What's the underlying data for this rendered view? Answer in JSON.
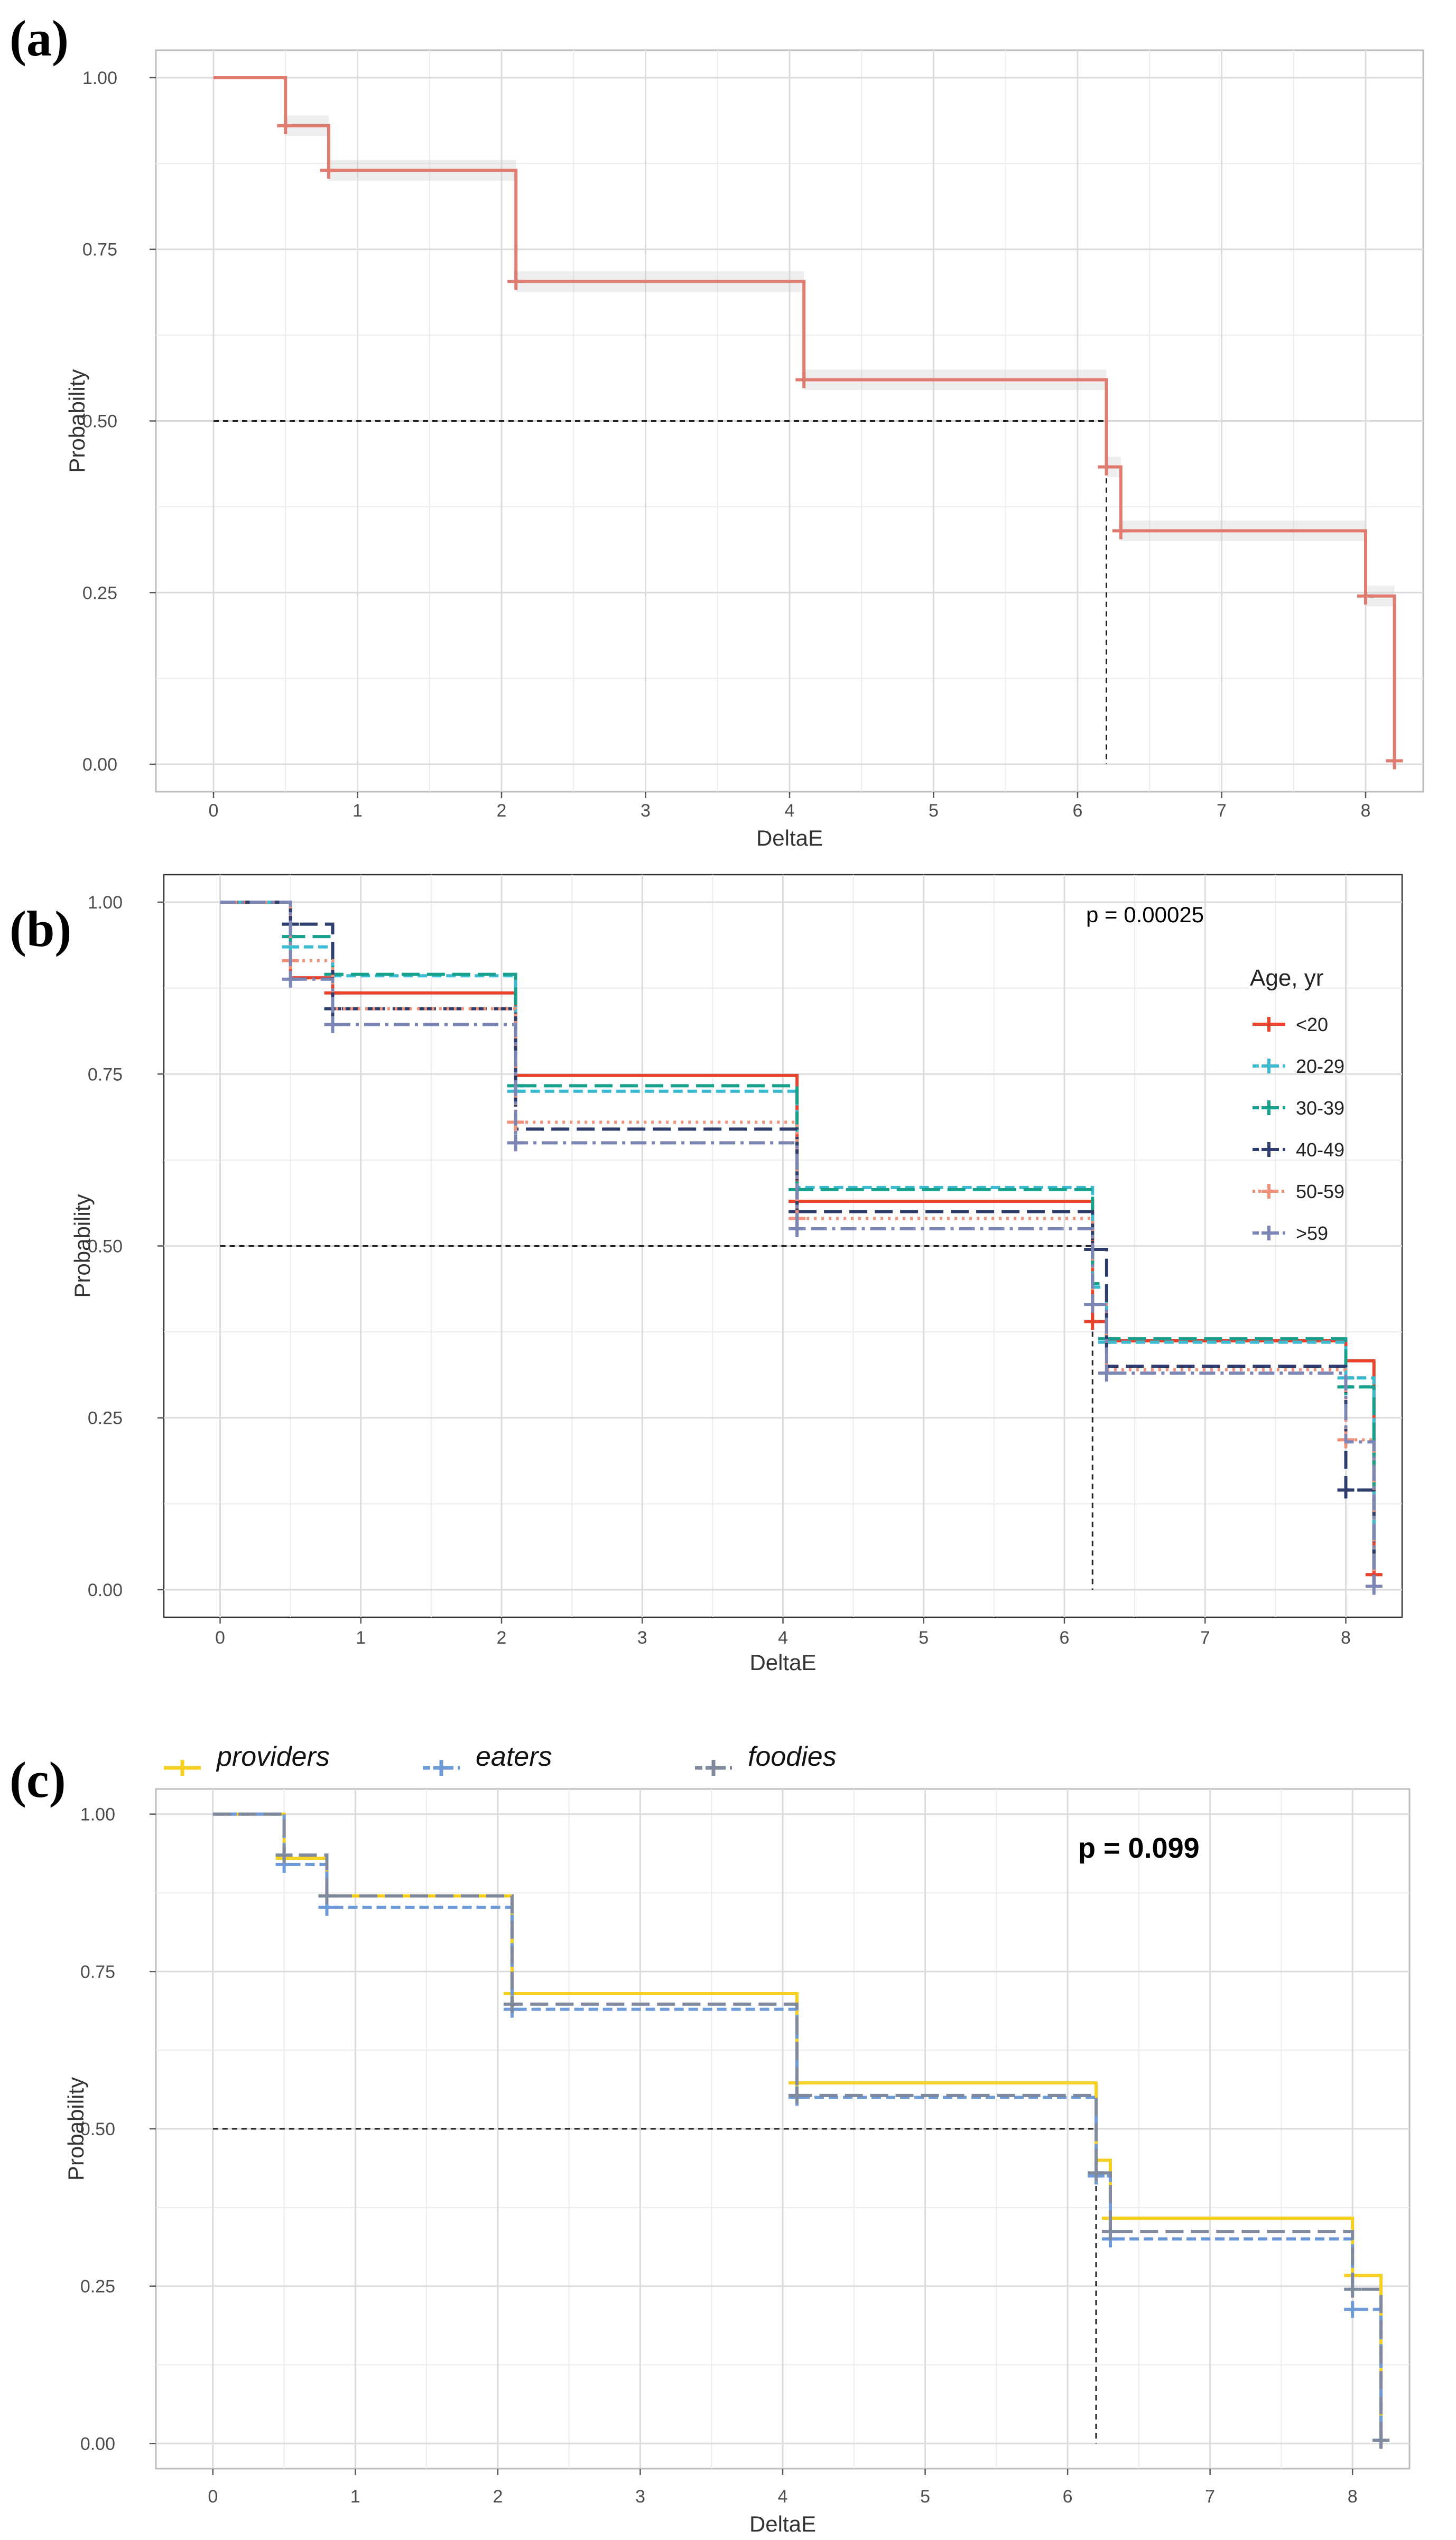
{
  "chart_data": [
    {
      "panel": "(a)",
      "type": "line",
      "xlabel": "DeltaE",
      "ylabel": "Probability",
      "xlim": [
        -0.4,
        8.4
      ],
      "ylim": [
        -0.04,
        1.04
      ],
      "xticks": [
        "0",
        "1",
        "2",
        "3",
        "4",
        "5",
        "6",
        "7",
        "8"
      ],
      "yticks": [
        "0.00",
        "0.25",
        "0.50",
        "0.75",
        "1.00"
      ],
      "grid": true,
      "background": "gray-border",
      "median_line": {
        "y": 0.5,
        "x": 6.2
      },
      "series": [
        {
          "color": "#E07B70",
          "dash": "solid",
          "steps": [
            [
              0,
              1.0
            ],
            [
              0.5,
              0.93
            ],
            [
              0.8,
              0.865
            ],
            [
              2.1,
              0.703
            ],
            [
              4.1,
              0.56
            ],
            [
              6.2,
              0.433
            ],
            [
              6.3,
              0.34
            ],
            [
              8.0,
              0.245
            ],
            [
              8.2,
              0.005
            ]
          ],
          "censor": [
            [
              0.5,
              0.93
            ],
            [
              0.8,
              0.865
            ],
            [
              2.1,
              0.703
            ],
            [
              4.1,
              0.56
            ],
            [
              6.2,
              0.433
            ],
            [
              6.3,
              0.34
            ],
            [
              8.0,
              0.245
            ],
            [
              8.2,
              0.005
            ]
          ]
        }
      ]
    },
    {
      "panel": "(b)",
      "type": "line",
      "xlabel": "DeltaE",
      "ylabel": "Probability",
      "xlim": [
        -0.4,
        8.4
      ],
      "ylim": [
        -0.04,
        1.04
      ],
      "xticks": [
        "0",
        "1",
        "2",
        "3",
        "4",
        "5",
        "6",
        "7",
        "8"
      ],
      "yticks": [
        "0.00",
        "0.25",
        "0.50",
        "0.75",
        "1.00"
      ],
      "grid": true,
      "annotation": "p = 0.00025",
      "median_line": {
        "y": 0.5,
        "x": 6.2
      },
      "legend": {
        "title": "Age, yr",
        "placement": "right"
      },
      "series": [
        {
          "name": "<20",
          "color": "#E8432C",
          "dash": "solid",
          "steps": [
            [
              0,
              1.0
            ],
            [
              0.5,
              0.89
            ],
            [
              0.8,
              0.868
            ],
            [
              2.1,
              0.748
            ],
            [
              4.1,
              0.565
            ],
            [
              6.2,
              0.39
            ],
            [
              6.3,
              0.362
            ],
            [
              8.0,
              0.333
            ],
            [
              8.2,
              0.022
            ]
          ],
          "censor": [
            [
              0.8,
              0.868
            ],
            [
              4.1,
              0.565
            ],
            [
              6.2,
              0.39
            ],
            [
              8.2,
              0.022
            ]
          ]
        },
        {
          "name": "20-29",
          "color": "#3BBAD0",
          "dash": "dash-short",
          "steps": [
            [
              0,
              1.0
            ],
            [
              0.5,
              0.935
            ],
            [
              0.8,
              0.893
            ],
            [
              2.1,
              0.725
            ],
            [
              4.1,
              0.585
            ],
            [
              6.2,
              0.44
            ],
            [
              6.3,
              0.36
            ],
            [
              8.0,
              0.308
            ],
            [
              8.2,
              0.005
            ]
          ],
          "censor": [
            [
              0.5,
              0.935
            ],
            [
              2.1,
              0.725
            ],
            [
              6.3,
              0.36
            ],
            [
              8.0,
              0.308
            ]
          ]
        },
        {
          "name": "30-39",
          "color": "#17A08C",
          "dash": "dash-long",
          "steps": [
            [
              0,
              1.0
            ],
            [
              0.5,
              0.95
            ],
            [
              0.8,
              0.895
            ],
            [
              2.1,
              0.733
            ],
            [
              4.1,
              0.582
            ],
            [
              6.2,
              0.445
            ],
            [
              6.3,
              0.365
            ],
            [
              8.0,
              0.295
            ],
            [
              8.2,
              0.005
            ]
          ],
          "censor": [
            [
              0.5,
              0.95
            ],
            [
              0.8,
              0.895
            ],
            [
              2.1,
              0.733
            ],
            [
              4.1,
              0.582
            ],
            [
              6.3,
              0.365
            ],
            [
              8.0,
              0.295
            ]
          ]
        },
        {
          "name": "40-49",
          "color": "#2E3D6B",
          "dash": "dash-long",
          "steps": [
            [
              0,
              1.0
            ],
            [
              0.5,
              0.968
            ],
            [
              0.8,
              0.845
            ],
            [
              2.1,
              0.67
            ],
            [
              4.1,
              0.55
            ],
            [
              6.2,
              0.495
            ],
            [
              6.3,
              0.325
            ],
            [
              8.0,
              0.145
            ],
            [
              8.2,
              0.005
            ]
          ],
          "censor": [
            [
              0.5,
              0.968
            ],
            [
              0.8,
              0.845
            ],
            [
              4.1,
              0.55
            ],
            [
              6.2,
              0.495
            ],
            [
              8.0,
              0.145
            ]
          ]
        },
        {
          "name": "50-59",
          "color": "#F0917A",
          "dash": "dot",
          "steps": [
            [
              0,
              1.0
            ],
            [
              0.5,
              0.915
            ],
            [
              0.8,
              0.845
            ],
            [
              2.1,
              0.68
            ],
            [
              4.1,
              0.54
            ],
            [
              6.2,
              0.415
            ],
            [
              6.3,
              0.32
            ],
            [
              8.0,
              0.218
            ],
            [
              8.2,
              0.005
            ]
          ],
          "censor": [
            [
              0.5,
              0.915
            ],
            [
              2.1,
              0.68
            ],
            [
              4.1,
              0.54
            ],
            [
              8.0,
              0.218
            ]
          ]
        },
        {
          "name": ">59",
          "color": "#7C86B5",
          "dash": "dash-dot",
          "steps": [
            [
              0,
              1.0
            ],
            [
              0.5,
              0.888
            ],
            [
              0.8,
              0.822
            ],
            [
              2.1,
              0.65
            ],
            [
              4.1,
              0.525
            ],
            [
              6.2,
              0.415
            ],
            [
              6.3,
              0.315
            ],
            [
              8.0,
              0.215
            ],
            [
              8.2,
              0.005
            ]
          ],
          "censor": [
            [
              0.5,
              0.888
            ],
            [
              0.8,
              0.822
            ],
            [
              2.1,
              0.65
            ],
            [
              4.1,
              0.525
            ],
            [
              6.2,
              0.415
            ],
            [
              6.3,
              0.315
            ],
            [
              8.2,
              0.005
            ]
          ]
        }
      ]
    },
    {
      "panel": "(c)",
      "type": "line",
      "xlabel": "DeltaE",
      "ylabel": "Probability",
      "xlim": [
        -0.4,
        8.4
      ],
      "ylim": [
        -0.04,
        1.04
      ],
      "xticks": [
        "0",
        "1",
        "2",
        "3",
        "4",
        "5",
        "6",
        "7",
        "8"
      ],
      "yticks": [
        "0.00",
        "0.25",
        "0.50",
        "0.75",
        "1.00"
      ],
      "grid": true,
      "background": "gray-border",
      "annotation": "p = 0.099",
      "median_line": {
        "y": 0.5,
        "x": 6.2
      },
      "legend": {
        "placement": "top"
      },
      "series": [
        {
          "name": "providers",
          "color": "#F5D020",
          "dash": "solid",
          "steps": [
            [
              0,
              1.0
            ],
            [
              0.5,
              0.93
            ],
            [
              0.8,
              0.87
            ],
            [
              2.1,
              0.715
            ],
            [
              4.1,
              0.573
            ],
            [
              6.2,
              0.45
            ],
            [
              6.3,
              0.358
            ],
            [
              8.0,
              0.267
            ],
            [
              8.2,
              0.005
            ]
          ],
          "censor": [
            [
              0.5,
              0.93
            ],
            [
              0.8,
              0.87
            ],
            [
              2.1,
              0.715
            ],
            [
              4.1,
              0.573
            ],
            [
              6.3,
              0.358
            ],
            [
              8.0,
              0.267
            ]
          ]
        },
        {
          "name": "eaters",
          "color": "#6E9BD8",
          "dash": "dash-short",
          "steps": [
            [
              0,
              1.0
            ],
            [
              0.5,
              0.92
            ],
            [
              0.8,
              0.852
            ],
            [
              2.1,
              0.69
            ],
            [
              4.1,
              0.55
            ],
            [
              6.2,
              0.425
            ],
            [
              6.3,
              0.325
            ],
            [
              8.0,
              0.213
            ],
            [
              8.2,
              0.005
            ]
          ],
          "censor": [
            [
              0.5,
              0.92
            ],
            [
              0.8,
              0.852
            ],
            [
              2.1,
              0.69
            ],
            [
              4.1,
              0.55
            ],
            [
              6.2,
              0.425
            ],
            [
              6.3,
              0.325
            ],
            [
              8.0,
              0.213
            ],
            [
              8.2,
              0.005
            ]
          ]
        },
        {
          "name": "foodies",
          "color": "#7F8A9E",
          "dash": "dash-long",
          "steps": [
            [
              0,
              1.0
            ],
            [
              0.5,
              0.935
            ],
            [
              0.8,
              0.87
            ],
            [
              2.1,
              0.698
            ],
            [
              4.1,
              0.553
            ],
            [
              6.2,
              0.43
            ],
            [
              6.3,
              0.337
            ],
            [
              8.0,
              0.245
            ],
            [
              8.2,
              0.005
            ]
          ],
          "censor": [
            [
              0.5,
              0.935
            ],
            [
              0.8,
              0.87
            ],
            [
              2.1,
              0.698
            ],
            [
              4.1,
              0.553
            ],
            [
              6.2,
              0.43
            ],
            [
              6.3,
              0.337
            ],
            [
              8.0,
              0.245
            ],
            [
              8.2,
              0.005
            ]
          ]
        }
      ]
    }
  ]
}
